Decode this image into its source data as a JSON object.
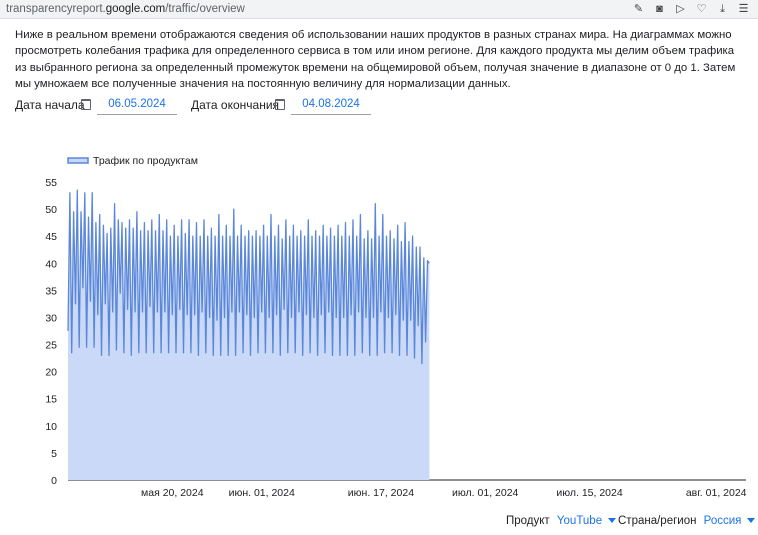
{
  "browser": {
    "url_domain_prefix": "transparencyreport.",
    "url_domain_main": "google.com",
    "url_path": "/traffic/overview",
    "icons": [
      "edit-icon",
      "camera-icon",
      "send-icon",
      "heart-icon",
      "download-icon",
      "menu-icon"
    ]
  },
  "description": "Ниже в реальном времени отображаются сведения об использовании наших продуктов в разных странах мира. На диаграммах можно просмотреть колебания трафика для определенного сервиса в том или ином регионе. Для каждого продукта мы делим объем трафика из выбранного региона за определенный промежуток времени на общемировой объем, получая значение в диапазоне от 0 до 1. Затем мы умножаем все полученные значения на постоянную величину для нормализации данных.",
  "dates": {
    "start_label": "Дата начала",
    "start_value": "06.05.2024",
    "end_label": "Дата окончания",
    "end_value": "04.08.2024"
  },
  "filters": {
    "product_label": "Продукт",
    "product_value": "YouTube",
    "region_label": "Страна/регион",
    "region_value": "Россия"
  },
  "colors": {
    "line": "#5b87d9",
    "fill": "#c9d9f7",
    "accent": "#1a73e8"
  },
  "chart_data": {
    "type": "area",
    "legend": "Трафик по продуктам",
    "legend_position": "top-left",
    "ylim": [
      0,
      55
    ],
    "yticks": [
      0,
      5,
      10,
      15,
      20,
      25,
      30,
      35,
      40,
      45,
      50,
      55
    ],
    "xlim": [
      0,
      91
    ],
    "xticks": [
      {
        "x": 14,
        "label": "мая 20, 2024"
      },
      {
        "x": 26,
        "label": "июн. 01, 2024"
      },
      {
        "x": 42,
        "label": "июн. 17, 2024"
      },
      {
        "x": 56,
        "label": "июл. 01, 2024"
      },
      {
        "x": 70,
        "label": "июл. 15, 2024"
      },
      {
        "x": 87,
        "label": "авг. 01, 2024"
      }
    ],
    "x_step": 0.25,
    "values": [
      27.5,
      53,
      23.5,
      49.5,
      32.5,
      53.5,
      24.5,
      49.5,
      35.5,
      53,
      24.5,
      48.5,
      33,
      53,
      24.5,
      47.5,
      30.5,
      49,
      23,
      47,
      32.5,
      45.5,
      23,
      46.5,
      31,
      51,
      24,
      48,
      34.5,
      47.5,
      23.5,
      46.5,
      31.5,
      48,
      23,
      46.5,
      31,
      49.5,
      23.5,
      46,
      31,
      47.5,
      23.5,
      46,
      32,
      48,
      23.5,
      46,
      31,
      49,
      23.5,
      46,
      31,
      48,
      23.5,
      45,
      30.5,
      47,
      23.5,
      45,
      31.5,
      48,
      23.5,
      45.5,
      30.5,
      48,
      23.5,
      45,
      30.5,
      47.5,
      23,
      45,
      31,
      48,
      23.5,
      45,
      30,
      46.5,
      23,
      45,
      29.5,
      49,
      23,
      45,
      30,
      47,
      23,
      45,
      31,
      50,
      23,
      45,
      31,
      47,
      23.5,
      45,
      30.5,
      46,
      23,
      45,
      30,
      46,
      23.5,
      45,
      31,
      47,
      23.5,
      45,
      30,
      49,
      23.5,
      45,
      30.5,
      47,
      23,
      44.5,
      31.5,
      48,
      23.5,
      45,
      30,
      47,
      23.5,
      45,
      31,
      46,
      23,
      45,
      30.5,
      48,
      23.5,
      45,
      30,
      46,
      23,
      45,
      30.5,
      47,
      23.5,
      45,
      31,
      46.5,
      23,
      45,
      30,
      47,
      23,
      45,
      30,
      47.5,
      23,
      45,
      30.5,
      48,
      23,
      45,
      31,
      49,
      23.5,
      44.5,
      30,
      46,
      23,
      44.5,
      30,
      51,
      23,
      45,
      31,
      49,
      23.5,
      45,
      30,
      46,
      23.5,
      44.5,
      30.5,
      47,
      23,
      44,
      29.5,
      47.5,
      23,
      44,
      29.5,
      45,
      22.5,
      43,
      28.5,
      43,
      21.5,
      41,
      25.5,
      40.5,
      40
    ]
  }
}
